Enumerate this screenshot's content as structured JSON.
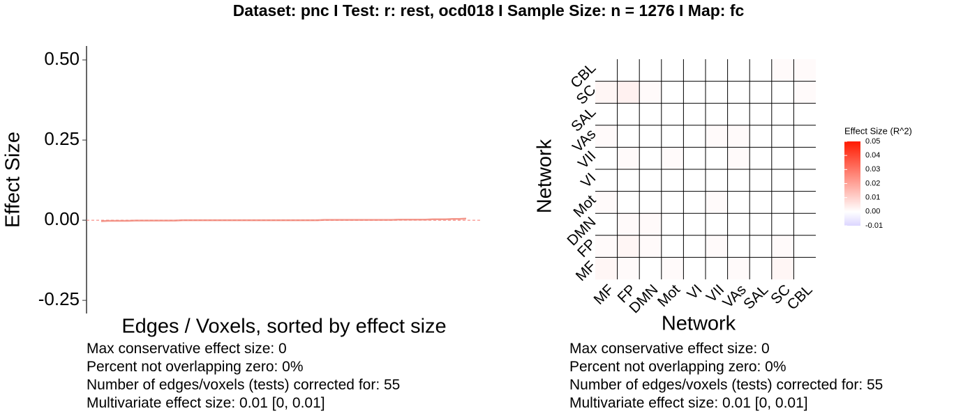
{
  "title": "Dataset: pnc   I  Test: r: rest, ocd018   I   Sample Size: n = 1276   I  Map: fc",
  "chart_data": [
    {
      "type": "line",
      "ylabel": "Effect Size",
      "xlabel": "Edges / Voxels, sorted by effect size",
      "values": [
        -0.003,
        -0.002,
        -0.002,
        -0.002,
        -0.002,
        -0.001,
        -0.001,
        -0.001,
        -0.001,
        -0.001,
        -0.001,
        -0.001,
        0,
        0,
        0,
        0,
        0,
        0,
        0,
        0,
        0,
        0,
        0,
        0,
        0,
        0,
        0,
        0,
        0,
        0,
        0,
        0,
        0,
        0.001,
        0.001,
        0.001,
        0.001,
        0.001,
        0.001,
        0.001,
        0.001,
        0.001,
        0.001,
        0.001,
        0.002,
        0.002,
        0.002,
        0.002,
        0.002,
        0.003,
        0.003,
        0.003,
        0.004,
        0.004,
        0.005
      ],
      "color": "#f08070",
      "hline": 0,
      "hline_color": "#f8766d",
      "ylim": [
        -0.291,
        0.5435
      ],
      "yticks": [
        {
          "value": 0.5,
          "label": "0.50"
        },
        {
          "value": 0.25,
          "label": "0.25"
        },
        {
          "value": 0,
          "label": "0.00"
        },
        {
          "value": -0.25,
          "label": "-0.25"
        }
      ]
    },
    {
      "type": "heatmap",
      "xlabel": "Network",
      "ylabel": "Network",
      "categories": [
        "MF",
        "FP",
        "DMN",
        "Mot",
        "VI",
        "VII",
        "VAs",
        "SAL",
        "SC",
        "CBL"
      ],
      "z": [
        [
          0.002,
          0.001,
          0.0,
          0.001,
          0.0,
          0.0,
          0.001,
          0.0,
          0.002,
          0.0
        ],
        [
          0.001,
          0.002,
          0.001,
          0.0,
          0.0,
          0.001,
          0.0,
          0.0,
          0.001,
          0.0
        ],
        [
          0.0,
          0.001,
          0.001,
          0.0,
          0.0,
          0.0,
          0.0,
          0.0,
          0.0,
          0.0
        ],
        [
          0.001,
          0.0,
          0.0,
          0.0,
          0.0,
          0.001,
          0.0,
          0.0,
          0.0,
          0.0
        ],
        [
          0.0,
          0.0,
          0.0,
          0.0,
          0.0,
          0.0,
          0.0,
          0.0,
          0.0,
          0.0
        ],
        [
          0.0,
          0.001,
          0.0,
          0.001,
          0.0,
          0.0,
          0.001,
          0.0,
          0.0,
          0.0
        ],
        [
          0.001,
          0.0,
          0.0,
          0.0,
          0.0,
          0.001,
          0.001,
          0.0,
          0.0,
          0.0
        ],
        [
          0.0,
          0.0,
          0.0,
          0.0,
          0.0,
          0.0,
          0.0,
          0.0,
          0.0,
          0.0
        ],
        [
          0.002,
          0.003,
          0.001,
          0.0,
          0.0,
          0.0,
          0.0,
          0.0,
          0.0,
          0.001
        ],
        [
          0.0,
          0.0,
          0.0,
          0.0,
          0.0,
          0.0,
          0.0,
          0.0,
          0.001,
          0.001
        ]
      ],
      "legend_title": "Effect Size (R^2)",
      "zlim": [
        -0.01,
        0.05
      ],
      "zticks": [
        {
          "value": 0.05,
          "label": "0.05"
        },
        {
          "value": 0.04,
          "label": "0.04"
        },
        {
          "value": 0.03,
          "label": "0.03"
        },
        {
          "value": 0.02,
          "label": "0.02"
        },
        {
          "value": 0.01,
          "label": "0.01"
        },
        {
          "value": 0,
          "label": "0.00"
        },
        {
          "value": -0.01,
          "label": "-0.01"
        }
      ],
      "colorscale": [
        [
          -0.01,
          "#dcd6ff"
        ],
        [
          0,
          "#ffffff"
        ],
        [
          0.05,
          "#ff1a00"
        ]
      ]
    }
  ],
  "notes": {
    "left": [
      "Max conservative effect size: 0",
      "Percent not overlapping zero: 0%",
      "Number of edges/voxels (tests) corrected for: 55",
      "Multivariate effect size: 0.01 [0, 0.01]"
    ],
    "right": [
      "Max conservative effect size: 0",
      "Percent not overlapping zero: 0%",
      "Number of edges/voxels (tests) corrected for: 55",
      "Multivariate effect size: 0.01 [0, 0.01]"
    ]
  }
}
